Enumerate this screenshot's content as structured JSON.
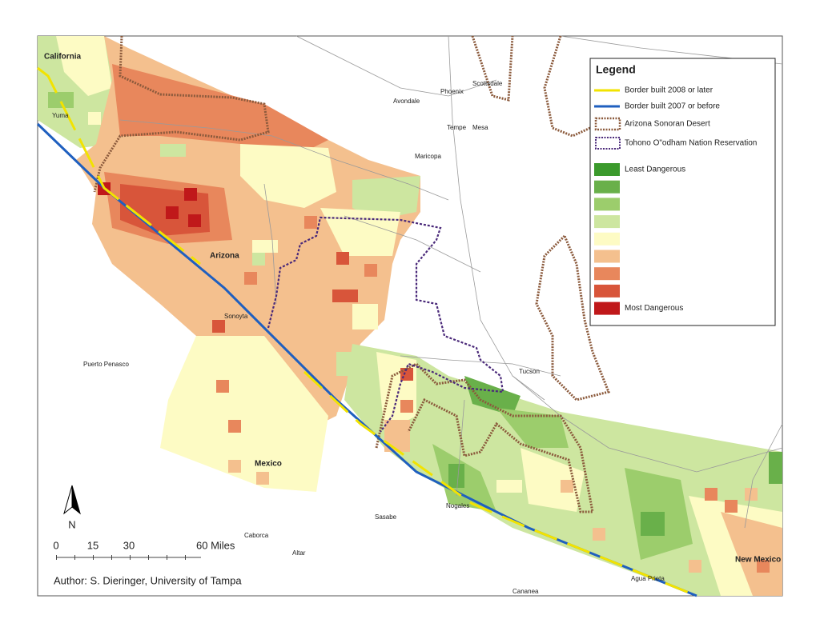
{
  "places": [
    "California",
    "Yuma",
    "Avondale",
    "Phoenix",
    "Scottsdale",
    "Tempe",
    "Mesa",
    "Maricopa",
    "Arizona",
    "Sonoyta",
    "Puerto Penasco",
    "Tucson",
    "Mexico",
    "Sasabe",
    "Nogales",
    "Caborca",
    "Altar",
    "Agua Prieta",
    "Cananea",
    "New Mexico"
  ],
  "legend": {
    "title": "Legend",
    "lines": [
      {
        "label": "Border built 2008 or later",
        "color": "#f2e300"
      },
      {
        "label": "Border built 2007 or before",
        "color": "#1f5fbf"
      },
      {
        "label": "Arizona Sonoran Desert",
        "color": "#8b5a3c"
      },
      {
        "label": "Tohono O\"odham Nation Reservation",
        "color": "#4b2a7a"
      }
    ],
    "classes": [
      {
        "label": "Least Dangerous",
        "color": "#3b9a2c"
      },
      {
        "color": "#69b04a"
      },
      {
        "color": "#9ccd6c"
      },
      {
        "color": "#cde6a0"
      },
      {
        "color": "#fdfbc4"
      },
      {
        "color": "#f4c08e"
      },
      {
        "color": "#e8875c"
      },
      {
        "color": "#d8553a"
      },
      {
        "label": "Most Dangerous",
        "color": "#c0181a"
      }
    ]
  },
  "north_arrow": "N",
  "scale_bar": [
    "0",
    "15",
    "30",
    "60 Miles"
  ],
  "credit": "Author: S. Dieringer, University of Tampa"
}
